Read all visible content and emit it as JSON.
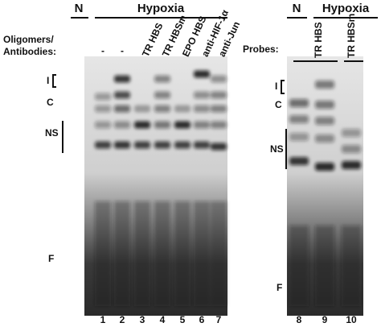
{
  "left_panel": {
    "group_labels": [
      "N",
      "Hypoxia"
    ],
    "row_label_lines": [
      "Oligomers/",
      "Antibodies:"
    ],
    "lane_labels": [
      "-",
      "-",
      "TR HBS",
      "TR HBSm",
      "EPO HBS",
      "anti-HIF-1α",
      "anti-Jun"
    ],
    "band_labels": [
      "I",
      "C",
      "NS",
      "F"
    ],
    "lane_numbers": [
      "1",
      "2",
      "3",
      "4",
      "5",
      "6",
      "7"
    ]
  },
  "right_panel": {
    "group_labels": [
      "N",
      "Hypoxia"
    ],
    "row_label": "Probes:",
    "lane_labels": [
      "TR HBS",
      "TR HBSm"
    ],
    "band_labels": [
      "I",
      "C",
      "NS",
      "F"
    ],
    "lane_numbers": [
      "8",
      "9",
      "10"
    ]
  }
}
